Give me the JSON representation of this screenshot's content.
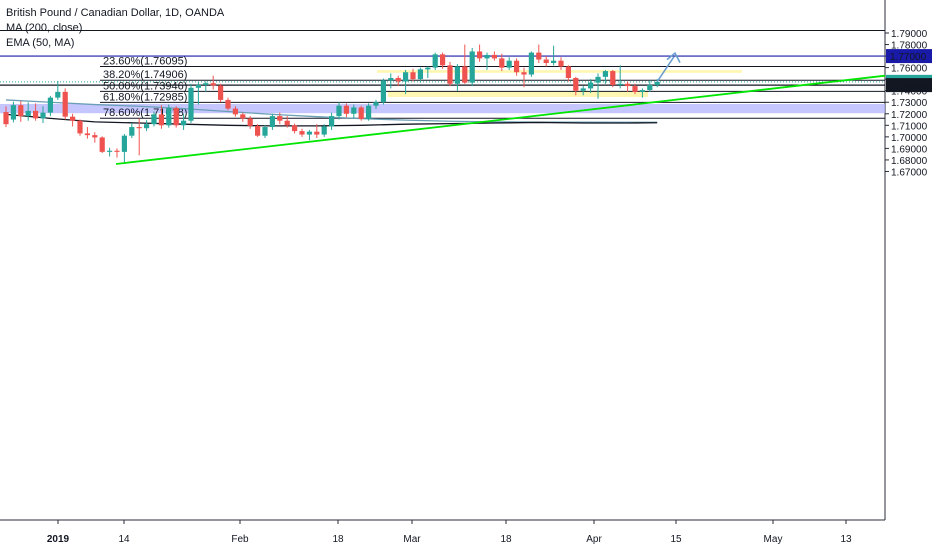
{
  "header": {
    "title": "British Pound / Canadian Dollar, 1D, OANDA",
    "indicator_ma": "MA (200, close)",
    "indicator_ema": "EMA (50, MA)"
  },
  "colors": {
    "up": "#26a69a",
    "down": "#ef5350",
    "green_line": "#00e600",
    "blue_line": "#1a1aa8",
    "zone_fill": "#b3b3ff",
    "yellow_zone": "#fff59d",
    "ema": "#6a9fb5",
    "ma": "#131722",
    "arrow": "#6a9fcf"
  },
  "chart_data": {
    "type": "candlestick",
    "title": "British Pound / Canadian Dollar, 1D, OANDA",
    "y_axis": {
      "range": [
        1.664,
        1.794
      ],
      "tick_labels": [
        "1.79000",
        "1.78000",
        "1.77000",
        "1.76000",
        "1.75000",
        "1.74000",
        "1.73000",
        "1.72000",
        "1.71000",
        "1.70000",
        "1.69000",
        "1.68000",
        "1.67000"
      ]
    },
    "x_axis": {
      "tick_labels": [
        "2019",
        "14",
        "Feb",
        "18",
        "Mar",
        "18",
        "Apr",
        "15",
        "May",
        "13"
      ]
    },
    "price_labels": {
      "level_1770": "1.77000",
      "last": "1.74768",
      "line": "1.74484"
    },
    "fib_levels": [
      {
        "label": "23.60%(1.76095)",
        "value": 1.76095
      },
      {
        "label": "38.20%(1.74906)",
        "value": 1.74906
      },
      {
        "label": "50.00%(1.73946)",
        "value": 1.73946
      },
      {
        "label": "61.80%(1.72985)",
        "value": 1.72985
      },
      {
        "label": "78.60%(1.71618)",
        "value": 1.71618
      }
    ],
    "horizontal_levels": {
      "top_line": 1.7922,
      "blue_line": 1.77,
      "black_line": 1.74484
    },
    "zones": {
      "support_band": [
        1.7205,
        1.7285
      ],
      "yellow_upper": [
        1.7555,
        1.7578
      ],
      "yellow_lower": [
        1.7345,
        1.7395
      ]
    },
    "candles": [
      {
        "o": 1.7215,
        "h": 1.7265,
        "l": 1.7085,
        "c": 1.711
      },
      {
        "o": 1.715,
        "h": 1.7305,
        "l": 1.7125,
        "c": 1.7275
      },
      {
        "o": 1.7275,
        "h": 1.731,
        "l": 1.713,
        "c": 1.718
      },
      {
        "o": 1.718,
        "h": 1.73,
        "l": 1.714,
        "c": 1.7225
      },
      {
        "o": 1.7225,
        "h": 1.729,
        "l": 1.714,
        "c": 1.716
      },
      {
        "o": 1.716,
        "h": 1.7265,
        "l": 1.712,
        "c": 1.721
      },
      {
        "o": 1.721,
        "h": 1.7355,
        "l": 1.718,
        "c": 1.734
      },
      {
        "o": 1.734,
        "h": 1.7485,
        "l": 1.732,
        "c": 1.739
      },
      {
        "o": 1.739,
        "h": 1.742,
        "l": 1.715,
        "c": 1.7175
      },
      {
        "o": 1.7175,
        "h": 1.72,
        "l": 1.709,
        "c": 1.714
      },
      {
        "o": 1.714,
        "h": 1.715,
        "l": 1.701,
        "c": 1.703
      },
      {
        "o": 1.703,
        "h": 1.7085,
        "l": 1.6985,
        "c": 1.7015
      },
      {
        "o": 1.7015,
        "h": 1.704,
        "l": 1.695,
        "c": 1.6995
      },
      {
        "o": 1.6995,
        "h": 1.7005,
        "l": 1.686,
        "c": 1.687
      },
      {
        "o": 1.687,
        "h": 1.6905,
        "l": 1.683,
        "c": 1.688
      },
      {
        "o": 1.688,
        "h": 1.69,
        "l": 1.682,
        "c": 1.687
      },
      {
        "o": 1.687,
        "h": 1.7025,
        "l": 1.6765,
        "c": 1.701
      },
      {
        "o": 1.701,
        "h": 1.712,
        "l": 1.699,
        "c": 1.7085
      },
      {
        "o": 1.7085,
        "h": 1.716,
        "l": 1.684,
        "c": 1.7075
      },
      {
        "o": 1.7075,
        "h": 1.7145,
        "l": 1.705,
        "c": 1.711
      },
      {
        "o": 1.711,
        "h": 1.722,
        "l": 1.709,
        "c": 1.7195
      },
      {
        "o": 1.7195,
        "h": 1.7275,
        "l": 1.707,
        "c": 1.71
      },
      {
        "o": 1.71,
        "h": 1.728,
        "l": 1.708,
        "c": 1.725
      },
      {
        "o": 1.725,
        "h": 1.7265,
        "l": 1.708,
        "c": 1.71
      },
      {
        "o": 1.71,
        "h": 1.72,
        "l": 1.706,
        "c": 1.714
      },
      {
        "o": 1.714,
        "h": 1.746,
        "l": 1.712,
        "c": 1.7425
      },
      {
        "o": 1.7425,
        "h": 1.7475,
        "l": 1.728,
        "c": 1.745
      },
      {
        "o": 1.745,
        "h": 1.748,
        "l": 1.739,
        "c": 1.7465
      },
      {
        "o": 1.7465,
        "h": 1.753,
        "l": 1.741,
        "c": 1.7445
      },
      {
        "o": 1.7445,
        "h": 1.746,
        "l": 1.73,
        "c": 1.732
      },
      {
        "o": 1.732,
        "h": 1.734,
        "l": 1.723,
        "c": 1.7245
      },
      {
        "o": 1.7245,
        "h": 1.7265,
        "l": 1.7175,
        "c": 1.7195
      },
      {
        "o": 1.7195,
        "h": 1.721,
        "l": 1.713,
        "c": 1.716
      },
      {
        "o": 1.716,
        "h": 1.718,
        "l": 1.707,
        "c": 1.7095
      },
      {
        "o": 1.7095,
        "h": 1.711,
        "l": 1.7,
        "c": 1.701
      },
      {
        "o": 1.701,
        "h": 1.71,
        "l": 1.699,
        "c": 1.7085
      },
      {
        "o": 1.7085,
        "h": 1.72,
        "l": 1.706,
        "c": 1.718
      },
      {
        "o": 1.718,
        "h": 1.721,
        "l": 1.711,
        "c": 1.714
      },
      {
        "o": 1.714,
        "h": 1.718,
        "l": 1.708,
        "c": 1.71
      },
      {
        "o": 1.71,
        "h": 1.7115,
        "l": 1.703,
        "c": 1.705
      },
      {
        "o": 1.705,
        "h": 1.707,
        "l": 1.7,
        "c": 1.702
      },
      {
        "o": 1.702,
        "h": 1.706,
        "l": 1.697,
        "c": 1.7045
      },
      {
        "o": 1.7045,
        "h": 1.711,
        "l": 1.699,
        "c": 1.702
      },
      {
        "o": 1.702,
        "h": 1.711,
        "l": 1.7,
        "c": 1.709
      },
      {
        "o": 1.709,
        "h": 1.721,
        "l": 1.706,
        "c": 1.718
      },
      {
        "o": 1.718,
        "h": 1.73,
        "l": 1.715,
        "c": 1.727
      },
      {
        "o": 1.727,
        "h": 1.729,
        "l": 1.717,
        "c": 1.72
      },
      {
        "o": 1.72,
        "h": 1.728,
        "l": 1.716,
        "c": 1.7255
      },
      {
        "o": 1.7255,
        "h": 1.727,
        "l": 1.714,
        "c": 1.7155
      },
      {
        "o": 1.7155,
        "h": 1.729,
        "l": 1.714,
        "c": 1.727
      },
      {
        "o": 1.727,
        "h": 1.732,
        "l": 1.724,
        "c": 1.73
      },
      {
        "o": 1.73,
        "h": 1.7505,
        "l": 1.728,
        "c": 1.749
      },
      {
        "o": 1.749,
        "h": 1.755,
        "l": 1.742,
        "c": 1.751
      },
      {
        "o": 1.751,
        "h": 1.753,
        "l": 1.744,
        "c": 1.748
      },
      {
        "o": 1.748,
        "h": 1.758,
        "l": 1.737,
        "c": 1.756
      },
      {
        "o": 1.756,
        "h": 1.759,
        "l": 1.748,
        "c": 1.75
      },
      {
        "o": 1.75,
        "h": 1.76,
        "l": 1.747,
        "c": 1.7585
      },
      {
        "o": 1.7585,
        "h": 1.761,
        "l": 1.751,
        "c": 1.76
      },
      {
        "o": 1.76,
        "h": 1.773,
        "l": 1.758,
        "c": 1.7715
      },
      {
        "o": 1.7715,
        "h": 1.773,
        "l": 1.759,
        "c": 1.762
      },
      {
        "o": 1.762,
        "h": 1.765,
        "l": 1.744,
        "c": 1.746
      },
      {
        "o": 1.746,
        "h": 1.763,
        "l": 1.74,
        "c": 1.761
      },
      {
        "o": 1.761,
        "h": 1.78,
        "l": 1.746,
        "c": 1.747
      },
      {
        "o": 1.747,
        "h": 1.777,
        "l": 1.744,
        "c": 1.774
      },
      {
        "o": 1.774,
        "h": 1.78,
        "l": 1.765,
        "c": 1.768
      },
      {
        "o": 1.768,
        "h": 1.773,
        "l": 1.758,
        "c": 1.771
      },
      {
        "o": 1.771,
        "h": 1.774,
        "l": 1.766,
        "c": 1.768
      },
      {
        "o": 1.768,
        "h": 1.772,
        "l": 1.757,
        "c": 1.76
      },
      {
        "o": 1.76,
        "h": 1.769,
        "l": 1.758,
        "c": 1.766
      },
      {
        "o": 1.766,
        "h": 1.768,
        "l": 1.753,
        "c": 1.756
      },
      {
        "o": 1.756,
        "h": 1.76,
        "l": 1.743,
        "c": 1.754
      },
      {
        "o": 1.754,
        "h": 1.774,
        "l": 1.752,
        "c": 1.773
      },
      {
        "o": 1.773,
        "h": 1.78,
        "l": 1.764,
        "c": 1.767
      },
      {
        "o": 1.767,
        "h": 1.77,
        "l": 1.761,
        "c": 1.764
      },
      {
        "o": 1.764,
        "h": 1.779,
        "l": 1.762,
        "c": 1.766
      },
      {
        "o": 1.766,
        "h": 1.769,
        "l": 1.758,
        "c": 1.761
      },
      {
        "o": 1.761,
        "h": 1.762,
        "l": 1.748,
        "c": 1.751
      },
      {
        "o": 1.751,
        "h": 1.752,
        "l": 1.736,
        "c": 1.74
      },
      {
        "o": 1.74,
        "h": 1.744,
        "l": 1.736,
        "c": 1.742
      },
      {
        "o": 1.742,
        "h": 1.75,
        "l": 1.738,
        "c": 1.747
      },
      {
        "o": 1.747,
        "h": 1.755,
        "l": 1.733,
        "c": 1.752
      },
      {
        "o": 1.752,
        "h": 1.758,
        "l": 1.746,
        "c": 1.757
      },
      {
        "o": 1.757,
        "h": 1.758,
        "l": 1.743,
        "c": 1.745
      },
      {
        "o": 1.745,
        "h": 1.762,
        "l": 1.742,
        "c": 1.746
      },
      {
        "o": 1.746,
        "h": 1.748,
        "l": 1.739,
        "c": 1.744
      },
      {
        "o": 1.744,
        "h": 1.746,
        "l": 1.737,
        "c": 1.739
      },
      {
        "o": 1.739,
        "h": 1.742,
        "l": 1.734,
        "c": 1.7405
      },
      {
        "o": 1.7405,
        "h": 1.749,
        "l": 1.739,
        "c": 1.745
      },
      {
        "o": 1.745,
        "h": 1.75,
        "l": 1.743,
        "c": 1.7477
      }
    ],
    "moving_averages": [
      {
        "name": "MA (200, close)",
        "points": [
          [
            0,
            1.7195
          ],
          [
            6,
            1.716
          ],
          [
            12,
            1.713
          ],
          [
            18,
            1.712
          ],
          [
            24,
            1.711
          ],
          [
            30,
            1.71
          ],
          [
            36,
            1.7095
          ],
          [
            42,
            1.7095
          ],
          [
            48,
            1.71
          ],
          [
            54,
            1.711
          ],
          [
            60,
            1.7115
          ],
          [
            66,
            1.712
          ],
          [
            72,
            1.7125
          ],
          [
            78,
            1.712
          ],
          [
            84,
            1.712
          ],
          [
            88,
            1.7122
          ]
        ]
      },
      {
        "name": "EMA (50, MA)",
        "points": [
          [
            0,
            1.732
          ],
          [
            6,
            1.73
          ],
          [
            12,
            1.728
          ],
          [
            18,
            1.7265
          ],
          [
            24,
            1.7245
          ],
          [
            30,
            1.722
          ],
          [
            36,
            1.7195
          ],
          [
            42,
            1.7175
          ],
          [
            48,
            1.7158
          ],
          [
            54,
            1.7145
          ],
          [
            60,
            1.7135
          ],
          [
            66,
            1.713
          ],
          [
            72,
            1.7128
          ],
          [
            78,
            1.7127
          ],
          [
            84,
            1.7126
          ],
          [
            88,
            1.7126
          ]
        ]
      }
    ]
  }
}
